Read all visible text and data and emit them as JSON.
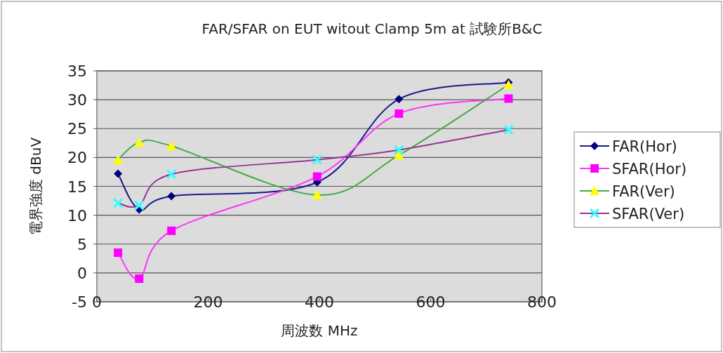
{
  "chart_data": {
    "type": "line",
    "title": "FAR/SFAR on EUT witout Clamp 5m at  試験所B&C",
    "xlabel": "周波数  MHz",
    "ylabel": "電界強度  dBuV",
    "x": [
      38,
      76,
      134,
      396,
      543,
      740
    ],
    "series": [
      {
        "name": "FAR(Hor)",
        "color": "#1a1a8c",
        "colors": [
          "#000080",
          "#000080",
          "#000080",
          "#000080",
          "#000080",
          "#000080"
        ],
        "marker": "diamond",
        "values": [
          17.2,
          11.0,
          13.3,
          15.7,
          30.1,
          33.0
        ]
      },
      {
        "name": "SFAR(Hor)",
        "color": "#ff33ff",
        "colors": [
          "#ff00ff",
          "#ff00ff",
          "#ff00ff",
          "#ff00ff",
          "#ff00ff",
          "#ff00ff"
        ],
        "marker": "square",
        "values": [
          3.5,
          -1.0,
          7.3,
          16.7,
          27.6,
          30.2
        ]
      },
      {
        "name": "FAR(Ver)",
        "color": "#44aa44",
        "colors": [
          "#ffff00",
          "#ffff00",
          "#ffff00",
          "#ffff00",
          "#ffff00",
          "#ffff00"
        ],
        "marker": "triangle",
        "values": [
          19.6,
          22.6,
          22.0,
          13.5,
          20.4,
          32.6
        ]
      },
      {
        "name": "SFAR(Ver)",
        "color": "#993399",
        "colors": [
          "#33ffff",
          "#33ffff",
          "#33ffff",
          "#33ffff",
          "#33ffff",
          "#33ffff"
        ],
        "marker": "cross",
        "values": [
          12.1,
          11.7,
          17.1,
          19.6,
          21.3,
          24.8
        ]
      }
    ],
    "xlim": [
      0,
      800
    ],
    "xticks": [
      0,
      200,
      400,
      600,
      800
    ],
    "ylim": [
      -5,
      35
    ],
    "yticks": [
      -5,
      0,
      5,
      10,
      15,
      20,
      25,
      30,
      35
    ],
    "grid": "y",
    "legend": "right",
    "line_style": "solid"
  }
}
